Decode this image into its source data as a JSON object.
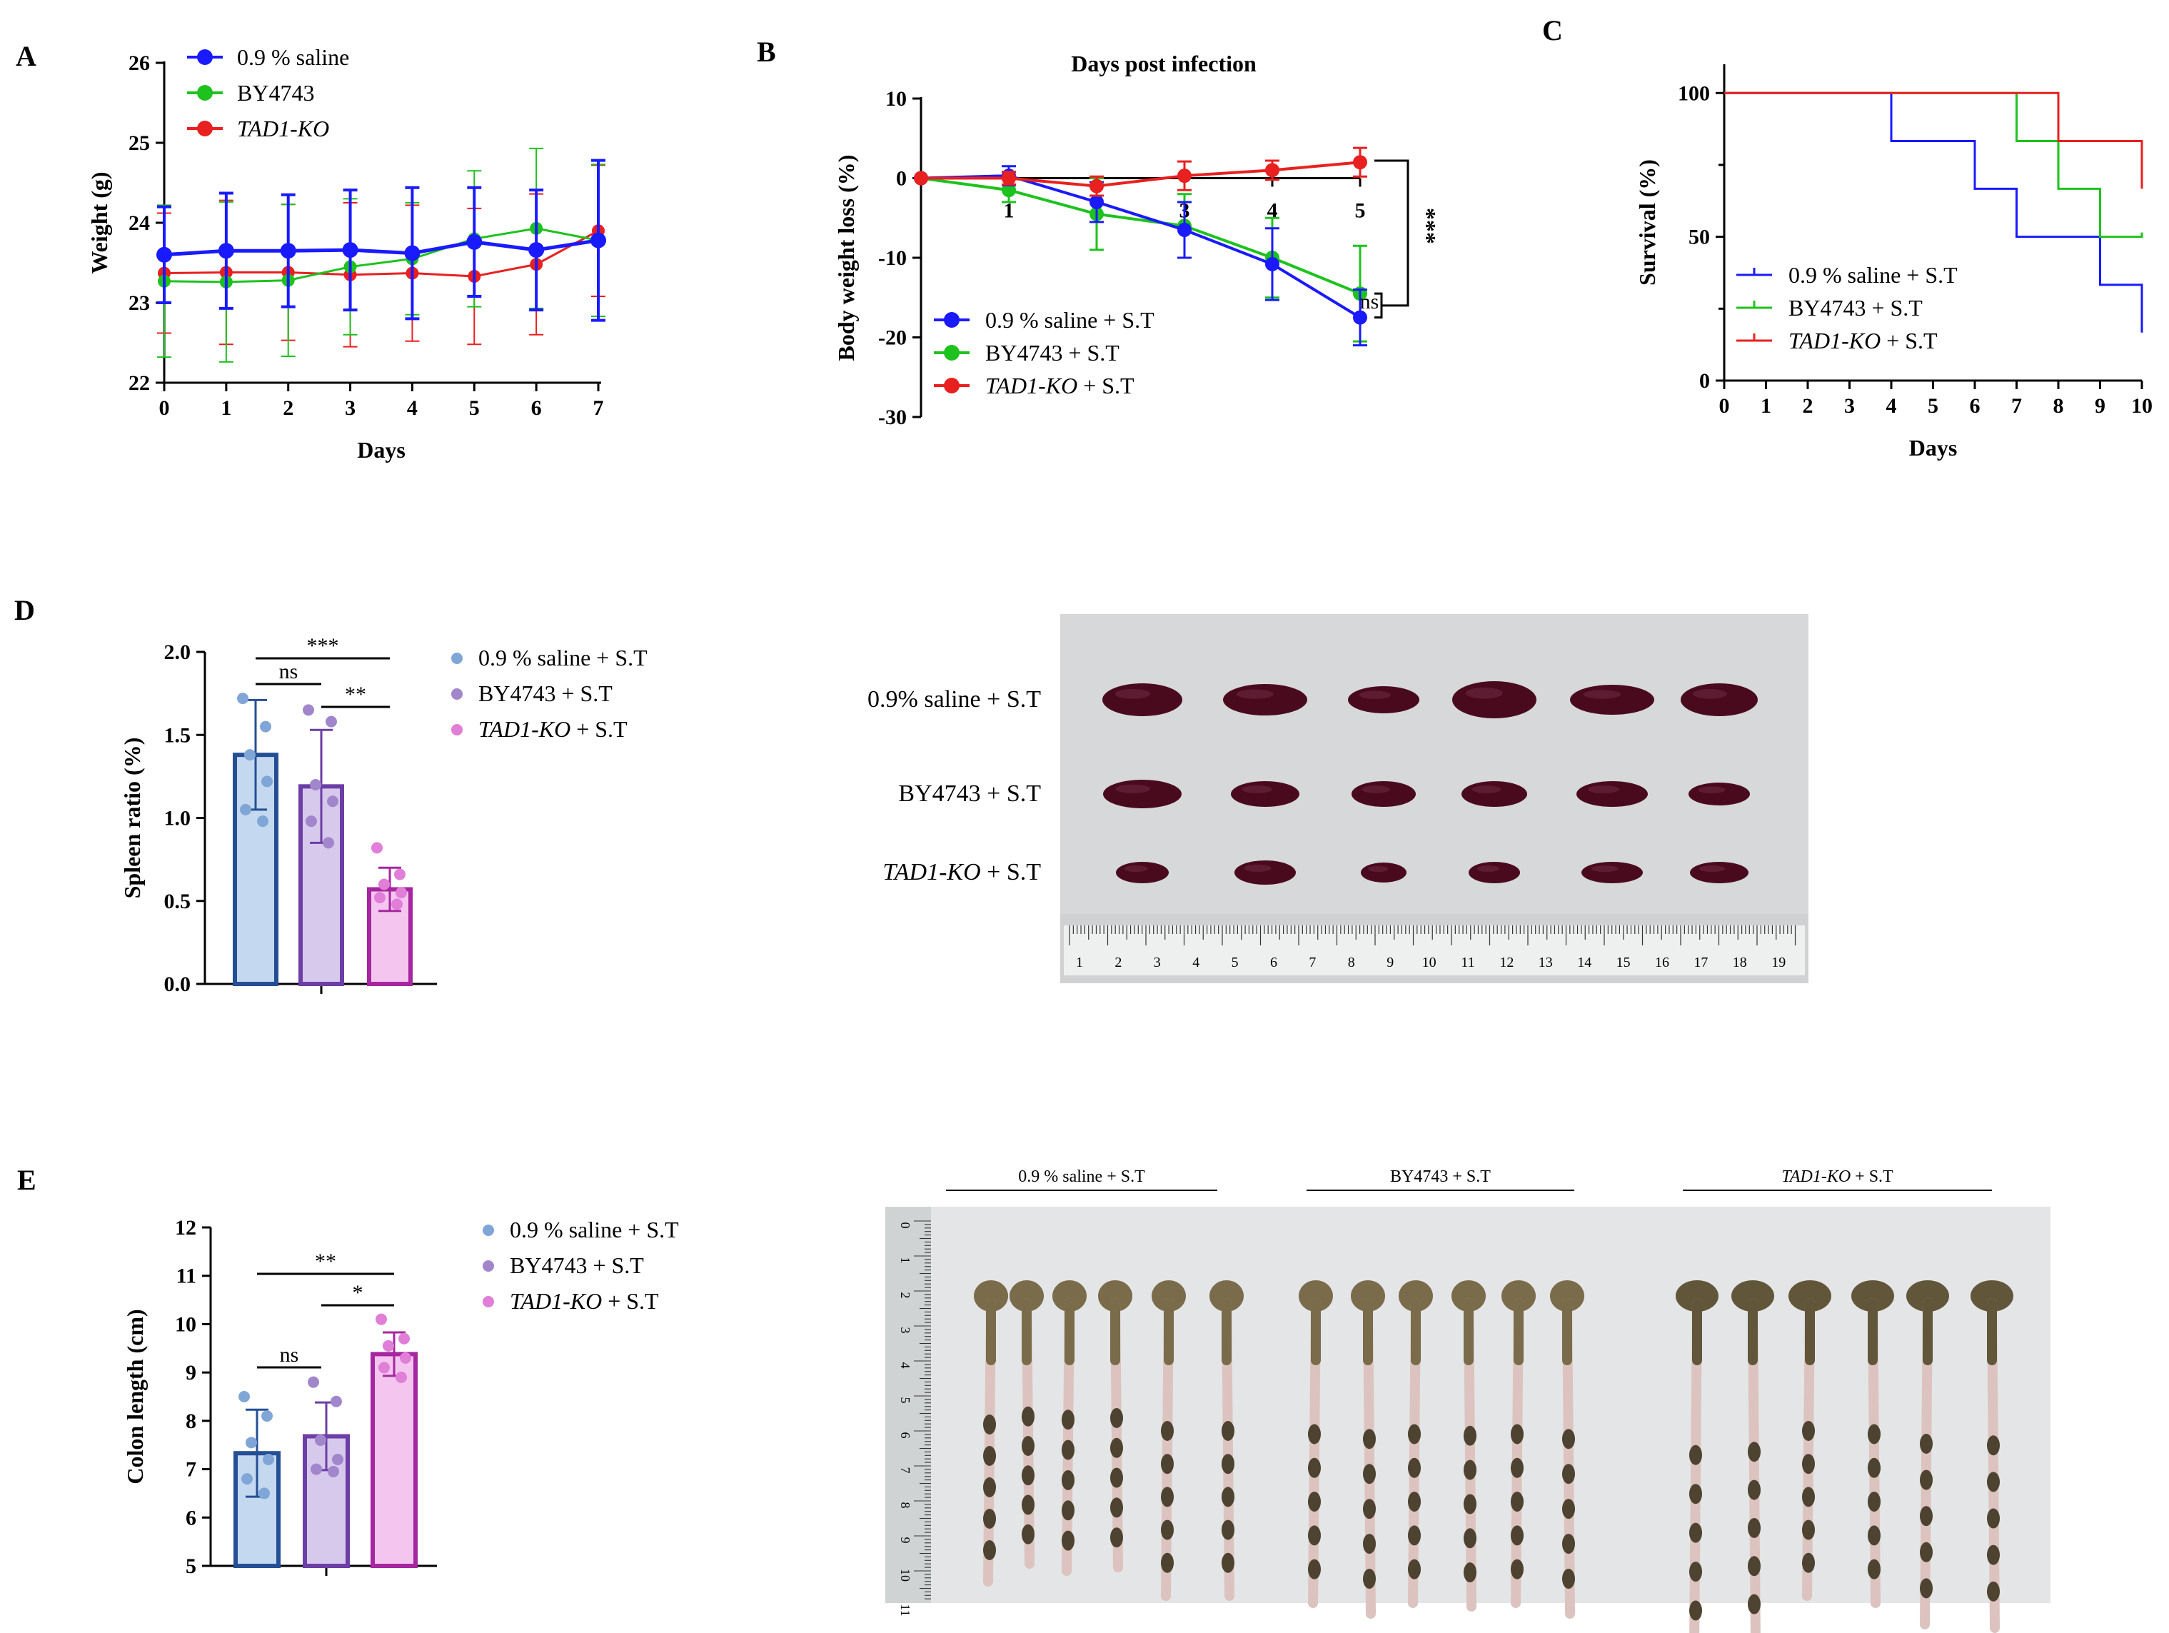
{
  "panels": [
    {
      "letter": "A",
      "type": "line",
      "xlabel": "Days",
      "ylabel": "Weight (g)",
      "xlim": [
        0,
        7
      ],
      "ylim": [
        22,
        26
      ],
      "xticks": [
        0,
        1,
        2,
        3,
        4,
        5,
        6,
        7
      ],
      "yticks": [
        22,
        23,
        24,
        25,
        26
      ],
      "series": [
        {
          "name": "0.9 % saline",
          "color": "#1a1aff",
          "lw": 5,
          "marker": 11,
          "x": [
            0,
            1,
            2,
            3,
            4,
            5,
            6,
            7
          ],
          "y": [
            23.6,
            23.65,
            23.65,
            23.66,
            23.62,
            23.76,
            23.66,
            23.78
          ],
          "err": [
            0.6,
            0.72,
            0.7,
            0.75,
            0.82,
            0.68,
            0.75,
            1.0
          ]
        },
        {
          "name": "BY4743",
          "color": "#1ec21e",
          "lw": 3,
          "marker": 9,
          "x": [
            0,
            1,
            2,
            3,
            4,
            5,
            6,
            7
          ],
          "y": [
            23.27,
            23.26,
            23.28,
            23.45,
            23.55,
            23.8,
            23.93,
            23.78
          ],
          "err": [
            0.95,
            1.0,
            0.95,
            0.85,
            0.7,
            0.85,
            1.0,
            0.95
          ]
        },
        {
          "name": "TAD1-KO",
          "italic": true,
          "color": "#e82020",
          "lw": 3,
          "marker": 9,
          "x": [
            0,
            1,
            2,
            3,
            4,
            5,
            6,
            7
          ],
          "y": [
            23.37,
            23.38,
            23.38,
            23.35,
            23.37,
            23.33,
            23.48,
            23.9
          ],
          "err": [
            0.75,
            0.9,
            0.85,
            0.9,
            0.85,
            0.85,
            0.88,
            0.82
          ]
        }
      ]
    },
    {
      "letter": "B",
      "type": "line",
      "title": "Days post infection",
      "ylabel": "Body weight loss (%)",
      "xlim": [
        0,
        5
      ],
      "ylim": [
        -30,
        10
      ],
      "xticks": [
        1,
        2,
        3,
        4,
        5
      ],
      "yticks": [
        -30,
        -20,
        -10,
        0,
        10
      ],
      "significance": [
        "***",
        "ns"
      ],
      "series": [
        {
          "name": "0.9 % saline + S.T",
          "color": "#1a1aff",
          "lw": 4,
          "marker": 10,
          "x": [
            0,
            1,
            2,
            3,
            4,
            5
          ],
          "y": [
            0,
            0.3,
            -3.0,
            -6.5,
            -10.8,
            -17.5
          ],
          "err": [
            0,
            1.2,
            2.5,
            3.5,
            4.5,
            3.5
          ]
        },
        {
          "name": "BY4743 + S.T",
          "color": "#1ec21e",
          "lw": 4,
          "marker": 10,
          "x": [
            0,
            1,
            2,
            3,
            4,
            5
          ],
          "y": [
            0,
            -1.5,
            -4.5,
            -6.0,
            -10.0,
            -14.5
          ],
          "err": [
            0,
            1.5,
            4.5,
            4.0,
            5.0,
            6.0
          ]
        },
        {
          "name": "TAD1-KO + S.T",
          "italic": true,
          "color": "#e82020",
          "lw": 4,
          "marker": 10,
          "x": [
            0,
            1,
            2,
            3,
            4,
            5
          ],
          "y": [
            0,
            0,
            -1.0,
            0.3,
            1.0,
            2.0
          ],
          "err": [
            0,
            0.8,
            1.2,
            1.8,
            1.2,
            1.8
          ]
        }
      ]
    },
    {
      "letter": "C",
      "type": "step",
      "xlabel": "Days",
      "ylabel": "Survival (%)",
      "xlim": [
        0,
        10
      ],
      "ylim": [
        0,
        100
      ],
      "xticks": [
        0,
        1,
        2,
        3,
        4,
        5,
        6,
        7,
        8,
        9,
        10
      ],
      "yticks": [
        0,
        50,
        100
      ],
      "series": [
        {
          "name": "0.9 % saline + S.T",
          "color": "#1a1aff",
          "lw": 3,
          "steps": [
            [
              0,
              100
            ],
            [
              4,
              83.3
            ],
            [
              6,
              66.7
            ],
            [
              7,
              50
            ],
            [
              9,
              33.3
            ],
            [
              10,
              16.7
            ]
          ]
        },
        {
          "name": "BY4743 + S.T",
          "color": "#1ec21e",
          "lw": 3,
          "steps": [
            [
              0,
              100
            ],
            [
              7,
              83.3
            ],
            [
              8,
              66.7
            ],
            [
              9,
              50
            ],
            [
              10,
              51.5
            ]
          ]
        },
        {
          "name": "TAD1-KO + S.T",
          "italic": true,
          "color": "#e82020",
          "lw": 3,
          "steps": [
            [
              0,
              100
            ],
            [
              8,
              83.3
            ],
            [
              10,
              66.7
            ]
          ]
        }
      ]
    },
    {
      "letter": "D",
      "type": "bar",
      "ylabel": "Spleen ratio (%)",
      "ylim": [
        0,
        2.0
      ],
      "yticks": [
        0.0,
        0.5,
        1.0,
        1.5,
        2.0
      ],
      "significance": [
        "***",
        "ns",
        "**"
      ],
      "series": [
        {
          "name": "0.9 % saline + S.T",
          "value": 1.38,
          "err": 0.33,
          "fill": "#c4d9ef",
          "edge": "#254f94",
          "dot": "#7fa6d6",
          "points": [
            1.72,
            1.55,
            1.38,
            1.22,
            1.05,
            0.98
          ]
        },
        {
          "name": "BY4743 + S.T",
          "value": 1.19,
          "err": 0.34,
          "fill": "#d6c9ec",
          "edge": "#6c3ea6",
          "dot": "#a186cc",
          "points": [
            1.65,
            1.58,
            1.2,
            1.1,
            0.98,
            0.85
          ]
        },
        {
          "name": "TAD1-KO + S.T",
          "italic": true,
          "value": 0.57,
          "err": 0.13,
          "fill": "#f4c6ef",
          "edge": "#a626a0",
          "dot": "#e07ed8",
          "points": [
            0.82,
            0.66,
            0.6,
            0.55,
            0.52,
            0.48
          ]
        }
      ]
    },
    {
      "letter": "E",
      "type": "bar",
      "ylabel": "Colon length (cm)",
      "ylim": [
        5,
        12
      ],
      "yticks": [
        5,
        6,
        7,
        8,
        9,
        10,
        11,
        12
      ],
      "significance": [
        "**",
        "*",
        "ns"
      ],
      "series": [
        {
          "name": "0.9 % saline + S.T",
          "value": 7.33,
          "err": 0.9,
          "fill": "#c4d9ef",
          "edge": "#254f94",
          "dot": "#7fa6d6",
          "points": [
            8.5,
            8.1,
            7.55,
            7.2,
            6.8,
            6.5
          ]
        },
        {
          "name": "BY4743 + S.T",
          "value": 7.68,
          "err": 0.7,
          "fill": "#d6c9ec",
          "edge": "#6c3ea6",
          "dot": "#a186cc",
          "points": [
            8.8,
            8.4,
            7.6,
            7.2,
            7.0,
            6.95
          ]
        },
        {
          "name": "TAD1-KO + S.T",
          "italic": true,
          "value": 9.38,
          "err": 0.45,
          "fill": "#f4c6ef",
          "edge": "#a626a0",
          "dot": "#e07ed8",
          "points": [
            10.1,
            9.7,
            9.55,
            9.3,
            9.1,
            8.9
          ]
        }
      ]
    }
  ],
  "spleen_photo": {
    "row_labels": [
      {
        "name": "0.9% saline + S.T"
      },
      {
        "name": "BY4743 + S.T"
      },
      {
        "name": "TAD1-KO + S.T",
        "italic": true
      }
    ],
    "ruler_numbers": [
      "1",
      "2",
      "3",
      "4",
      "5",
      "6",
      "7",
      "8",
      "9",
      "10",
      "11",
      "12",
      "13",
      "14",
      "15",
      "16",
      "17",
      "18",
      "19"
    ]
  },
  "colon_photo": {
    "group_labels": [
      {
        "name": "0.9 % saline + S.T"
      },
      {
        "name": "BY4743 + S.T"
      },
      {
        "name": "TAD1-KO + S.T",
        "italic": true
      }
    ],
    "ruler_numbers": [
      "0",
      "1",
      "2",
      "3",
      "4",
      "5",
      "6",
      "7",
      "8",
      "9",
      "10",
      "11"
    ]
  },
  "colors": {
    "saline": "#1a1aff",
    "by4743": "#1ec21e",
    "tad1ko": "#e82020",
    "spleen": "#4a0a1e",
    "colon_upper": "#7a6b4a",
    "colon_tail": "#dcc3bf"
  }
}
